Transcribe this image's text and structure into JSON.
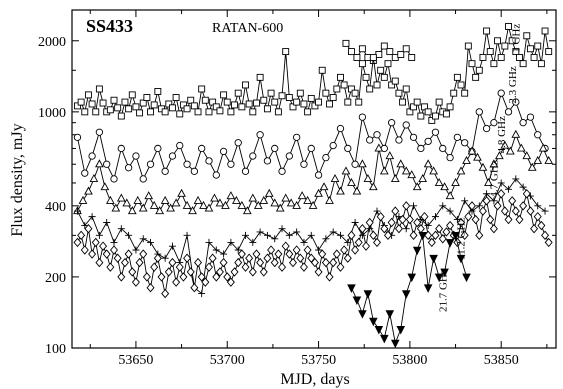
{
  "chart_data": {
    "type": "line",
    "title": "SS433",
    "subtitle": "RATAN-600",
    "xlabel": "MJD, days",
    "ylabel": "Flux density, mJy",
    "xlim": [
      53615,
      53880
    ],
    "ylim": [
      100,
      2700
    ],
    "yscale": "log",
    "x_ticks": [
      53650,
      53700,
      53750,
      53800,
      53850
    ],
    "y_ticks": [
      100,
      200,
      400,
      1000,
      2000
    ],
    "x_tick_labels": [
      "53650",
      "53700",
      "53750",
      "53800",
      "53850"
    ],
    "y_tick_labels": [
      "100",
      "200",
      "400",
      "1000",
      "2000"
    ],
    "series": [
      {
        "name": "1 GHz",
        "marker": "square",
        "x": [
          53765,
          53768,
          53771,
          53774,
          53777,
          53780,
          53783,
          53786,
          53789,
          53792,
          53795,
          53798,
          53801
        ],
        "y": [
          1950,
          1800,
          1700,
          1850,
          1700,
          1650,
          1750,
          1900,
          1800,
          1700,
          1750,
          1850,
          1700
        ]
      },
      {
        "name": "2.3 GHz",
        "marker": "square",
        "x": [
          53618,
          53620,
          53622,
          53624,
          53626,
          53628,
          53630,
          53632,
          53634,
          53636,
          53638,
          53640,
          53642,
          53644,
          53646,
          53648,
          53650,
          53652,
          53654,
          53656,
          53658,
          53660,
          53662,
          53664,
          53666,
          53668,
          53670,
          53672,
          53674,
          53676,
          53678,
          53680,
          53682,
          53684,
          53686,
          53688,
          53690,
          53692,
          53694,
          53696,
          53698,
          53700,
          53702,
          53704,
          53706,
          53708,
          53710,
          53712,
          53714,
          53716,
          53718,
          53720,
          53722,
          53724,
          53726,
          53728,
          53730,
          53732,
          53734,
          53736,
          53738,
          53740,
          53742,
          53744,
          53746,
          53748,
          53750,
          53752,
          53754,
          53756,
          53758,
          53760,
          53762,
          53764,
          53766,
          53768,
          53770,
          53772,
          53774,
          53776,
          53778,
          53780,
          53782,
          53784,
          53786,
          53788,
          53790,
          53792,
          53794,
          53796,
          53798,
          53800,
          53802,
          53804,
          53806,
          53808,
          53810,
          53812,
          53814,
          53816,
          53818,
          53820,
          53822,
          53824,
          53826,
          53828,
          53830,
          53832,
          53834,
          53836,
          53838,
          53840,
          53842,
          53844,
          53846,
          53848,
          53850,
          53852,
          53854,
          53856,
          53858,
          53860,
          53862,
          53864,
          53866,
          53868,
          53870,
          53872,
          53874,
          53876
        ],
        "y": [
          1060,
          1100,
          1000,
          1180,
          1080,
          1000,
          1250,
          1090,
          1000,
          1020,
          1120,
          1040,
          960,
          1100,
          1030,
          1180,
          1050,
          990,
          1090,
          1150,
          1000,
          1070,
          1220,
          1030,
          1000,
          1080,
          1040,
          1150,
          980,
          1070,
          1030,
          1120,
          1060,
          1000,
          1250,
          1120,
          1000,
          1100,
          1050,
          1010,
          1180,
          1100,
          1000,
          1070,
          1200,
          1050,
          1300,
          1080,
          1000,
          1090,
          1400,
          1120,
          1030,
          1200,
          1100,
          1000,
          1170,
          1800,
          1150,
          1050,
          1100,
          1200,
          1080,
          1000,
          1140,
          1060,
          1100,
          1500,
          1200,
          1080,
          1150,
          1250,
          1400,
          1300,
          1100,
          1250,
          1200,
          1100,
          1600,
          1400,
          1250,
          1700,
          1300,
          1500,
          1400,
          1600,
          1300,
          1350,
          1200,
          1100,
          1250,
          1000,
          1050,
          1100,
          960,
          1050,
          1000,
          920,
          960,
          1100,
          1000,
          980,
          1050,
          1200,
          1400,
          1300,
          1200,
          1900,
          1600,
          1400,
          1500,
          1700,
          2200,
          1800,
          1600,
          2000,
          1700,
          1900,
          2300,
          2000,
          1800,
          1700,
          1600,
          2100,
          1850,
          1700,
          1900,
          1600,
          2200,
          1800
        ]
      },
      {
        "name": "4.8 GHz",
        "marker": "circle",
        "x": [
          53618,
          53622,
          53626,
          53630,
          53634,
          53638,
          53642,
          53646,
          53650,
          53654,
          53658,
          53662,
          53666,
          53670,
          53674,
          53678,
          53682,
          53686,
          53690,
          53694,
          53698,
          53702,
          53706,
          53710,
          53714,
          53718,
          53722,
          53726,
          53730,
          53734,
          53738,
          53742,
          53746,
          53750,
          53754,
          53758,
          53762,
          53766,
          53770,
          53774,
          53778,
          53782,
          53786,
          53790,
          53794,
          53798,
          53802,
          53806,
          53810,
          53814,
          53818,
          53822,
          53826,
          53830,
          53834,
          53838,
          53842,
          53846,
          53850,
          53854,
          53858,
          53862,
          53866,
          53870,
          53874
        ],
        "y": [
          780,
          550,
          650,
          820,
          600,
          520,
          700,
          580,
          650,
          520,
          600,
          700,
          560,
          650,
          720,
          600,
          560,
          700,
          620,
          540,
          680,
          600,
          740,
          560,
          650,
          800,
          620,
          700,
          560,
          650,
          780,
          600,
          700,
          540,
          640,
          720,
          850,
          700,
          600,
          950,
          760,
          800,
          700,
          900,
          760,
          880,
          780,
          700,
          750,
          820,
          700,
          640,
          780,
          740,
          680,
          1000,
          850,
          900,
          1200,
          1000,
          1100,
          900,
          950,
          800,
          700
        ]
      },
      {
        "name": "4.7 GHz",
        "marker": "triangle",
        "x": [
          53618,
          53621,
          53624,
          53627,
          53630,
          53633,
          53636,
          53639,
          53642,
          53645,
          53648,
          53651,
          53654,
          53657,
          53660,
          53663,
          53666,
          53669,
          53672,
          53675,
          53678,
          53681,
          53684,
          53687,
          53690,
          53693,
          53696,
          53699,
          53702,
          53705,
          53708,
          53711,
          53714,
          53717,
          53720,
          53723,
          53726,
          53729,
          53732,
          53735,
          53738,
          53741,
          53744,
          53747,
          53750,
          53753,
          53756,
          53759,
          53762,
          53765,
          53768,
          53771,
          53774,
          53777,
          53780,
          53783,
          53786,
          53789,
          53792,
          53795,
          53798,
          53801,
          53804,
          53807,
          53810,
          53813,
          53816,
          53819,
          53822,
          53825,
          53828,
          53831,
          53834,
          53837,
          53840,
          53843,
          53846,
          53849,
          53852,
          53855,
          53858,
          53861,
          53864,
          53867,
          53870,
          53873,
          53876
        ],
        "y": [
          380,
          420,
          460,
          520,
          600,
          480,
          420,
          390,
          430,
          410,
          380,
          420,
          390,
          440,
          400,
          380,
          420,
          390,
          410,
          450,
          400,
          380,
          420,
          400,
          390,
          430,
          410,
          400,
          440,
          420,
          400,
          380,
          430,
          400,
          420,
          450,
          410,
          390,
          430,
          410,
          400,
          440,
          420,
          400,
          450,
          480,
          420,
          520,
          460,
          560,
          500,
          460,
          600,
          520,
          480,
          700,
          560,
          650,
          520,
          600,
          560,
          540,
          480,
          520,
          600,
          560,
          500,
          480,
          440,
          500,
          560,
          620,
          680,
          640,
          580,
          500,
          600,
          650,
          720,
          680,
          800,
          700,
          650,
          580,
          620,
          700,
          620
        ]
      },
      {
        "name": "11.2 GHz",
        "marker": "plus",
        "x": [
          53618,
          53622,
          53626,
          53630,
          53634,
          53638,
          53642,
          53646,
          53650,
          53654,
          53658,
          53662,
          53666,
          53670,
          53674,
          53678,
          53682,
          53686,
          53690,
          53694,
          53698,
          53702,
          53706,
          53710,
          53714,
          53718,
          53722,
          53726,
          53730,
          53734,
          53738,
          53742,
          53746,
          53750,
          53754,
          53758,
          53762,
          53766,
          53770,
          53774,
          53778,
          53782,
          53786,
          53790,
          53794,
          53798,
          53802,
          53806,
          53810,
          53814,
          53818,
          53822,
          53826,
          53830,
          53834,
          53838,
          53842,
          53846,
          53850,
          53854,
          53858,
          53862,
          53866,
          53870,
          53874
        ],
        "y": [
          380,
          330,
          360,
          300,
          340,
          280,
          320,
          300,
          260,
          290,
          280,
          250,
          240,
          270,
          230,
          300,
          180,
          170,
          280,
          260,
          250,
          280,
          260,
          300,
          280,
          310,
          300,
          290,
          320,
          300,
          310,
          280,
          300,
          260,
          290,
          310,
          300,
          280,
          340,
          300,
          320,
          380,
          330,
          300,
          360,
          320,
          400,
          350,
          330,
          360,
          400,
          380,
          350,
          420,
          380,
          400,
          450,
          420,
          500,
          470,
          520,
          480,
          440,
          400,
          380
        ]
      },
      {
        "name": "21.7 GHz",
        "marker": "diamond",
        "x": [
          53618,
          53620,
          53622,
          53624,
          53626,
          53628,
          53630,
          53632,
          53634,
          53636,
          53638,
          53640,
          53642,
          53644,
          53646,
          53648,
          53650,
          53652,
          53654,
          53656,
          53658,
          53660,
          53662,
          53664,
          53666,
          53668,
          53670,
          53672,
          53674,
          53676,
          53678,
          53680,
          53682,
          53684,
          53686,
          53688,
          53690,
          53692,
          53694,
          53696,
          53698,
          53700,
          53702,
          53704,
          53706,
          53708,
          53710,
          53712,
          53714,
          53716,
          53718,
          53720,
          53722,
          53724,
          53726,
          53728,
          53730,
          53732,
          53734,
          53736,
          53738,
          53740,
          53742,
          53744,
          53746,
          53748,
          53750,
          53752,
          53754,
          53756,
          53758,
          53760,
          53762,
          53764,
          53766,
          53768,
          53770,
          53772,
          53774,
          53776,
          53778,
          53780,
          53782,
          53784,
          53786,
          53788,
          53790,
          53792,
          53794,
          53796,
          53798,
          53800,
          53802,
          53804,
          53806,
          53808,
          53810,
          53812,
          53814,
          53816,
          53818,
          53820,
          53822,
          53824,
          53826,
          53828,
          53830,
          53832,
          53834,
          53836,
          53838,
          53840,
          53842,
          53844,
          53846,
          53848,
          53850,
          53852,
          53854,
          53856,
          53858,
          53860,
          53862,
          53864,
          53866,
          53868,
          53870,
          53872,
          53874,
          53876
        ],
        "y": [
          280,
          300,
          260,
          320,
          250,
          280,
          230,
          270,
          250,
          220,
          260,
          240,
          200,
          230,
          250,
          210,
          190,
          230,
          250,
          200,
          180,
          220,
          240,
          200,
          170,
          210,
          230,
          190,
          220,
          200,
          240,
          210,
          180,
          230,
          200,
          190,
          220,
          240,
          200,
          210,
          230,
          200,
          190,
          210,
          230,
          250,
          220,
          240,
          210,
          250,
          230,
          210,
          240,
          260,
          230,
          250,
          220,
          270,
          250,
          230,
          260,
          240,
          220,
          260,
          240,
          230,
          210,
          250,
          230,
          200,
          230,
          250,
          220,
          260,
          240,
          300,
          260,
          280,
          320,
          270,
          340,
          300,
          280,
          360,
          320,
          300,
          340,
          380,
          320,
          350,
          400,
          350,
          300,
          340,
          320,
          360,
          300,
          280,
          300,
          320,
          290,
          310,
          330,
          300,
          280,
          340,
          300,
          360,
          400,
          350,
          300,
          380,
          420,
          350,
          320,
          400,
          450,
          380,
          350,
          420,
          380,
          350,
          400,
          450,
          380,
          320,
          360,
          330,
          300,
          280
        ]
      },
      {
        "name": "",
        "marker": "down-triangle",
        "x": [
          53768,
          53771,
          53774,
          53777,
          53780,
          53783,
          53786,
          53789,
          53792,
          53795,
          53798,
          53801,
          53804,
          53807,
          53810,
          53813,
          53816,
          53819,
          53822,
          53825,
          53828,
          53831
        ],
        "y": [
          180,
          160,
          140,
          170,
          130,
          120,
          110,
          140,
          105,
          120,
          170,
          200,
          260,
          300,
          180,
          240,
          200,
          210,
          280,
          300,
          240,
          200
        ]
      }
    ],
    "series_labels": [
      {
        "text": "1 GHz",
        "x": 53860,
        "y": 2050
      },
      {
        "text": "2.3 GHz",
        "x": 53858,
        "y": 1300
      },
      {
        "text": "4.8 GHz",
        "x": 53852,
        "y": 800
      },
      {
        "text": "4.7 GHz",
        "x": 53848,
        "y": 520
      },
      {
        "text": "11.2 GHz",
        "x": 53830,
        "y": 290
      },
      {
        "text": "21.7 GHz",
        "x": 53820,
        "y": 175
      }
    ]
  }
}
